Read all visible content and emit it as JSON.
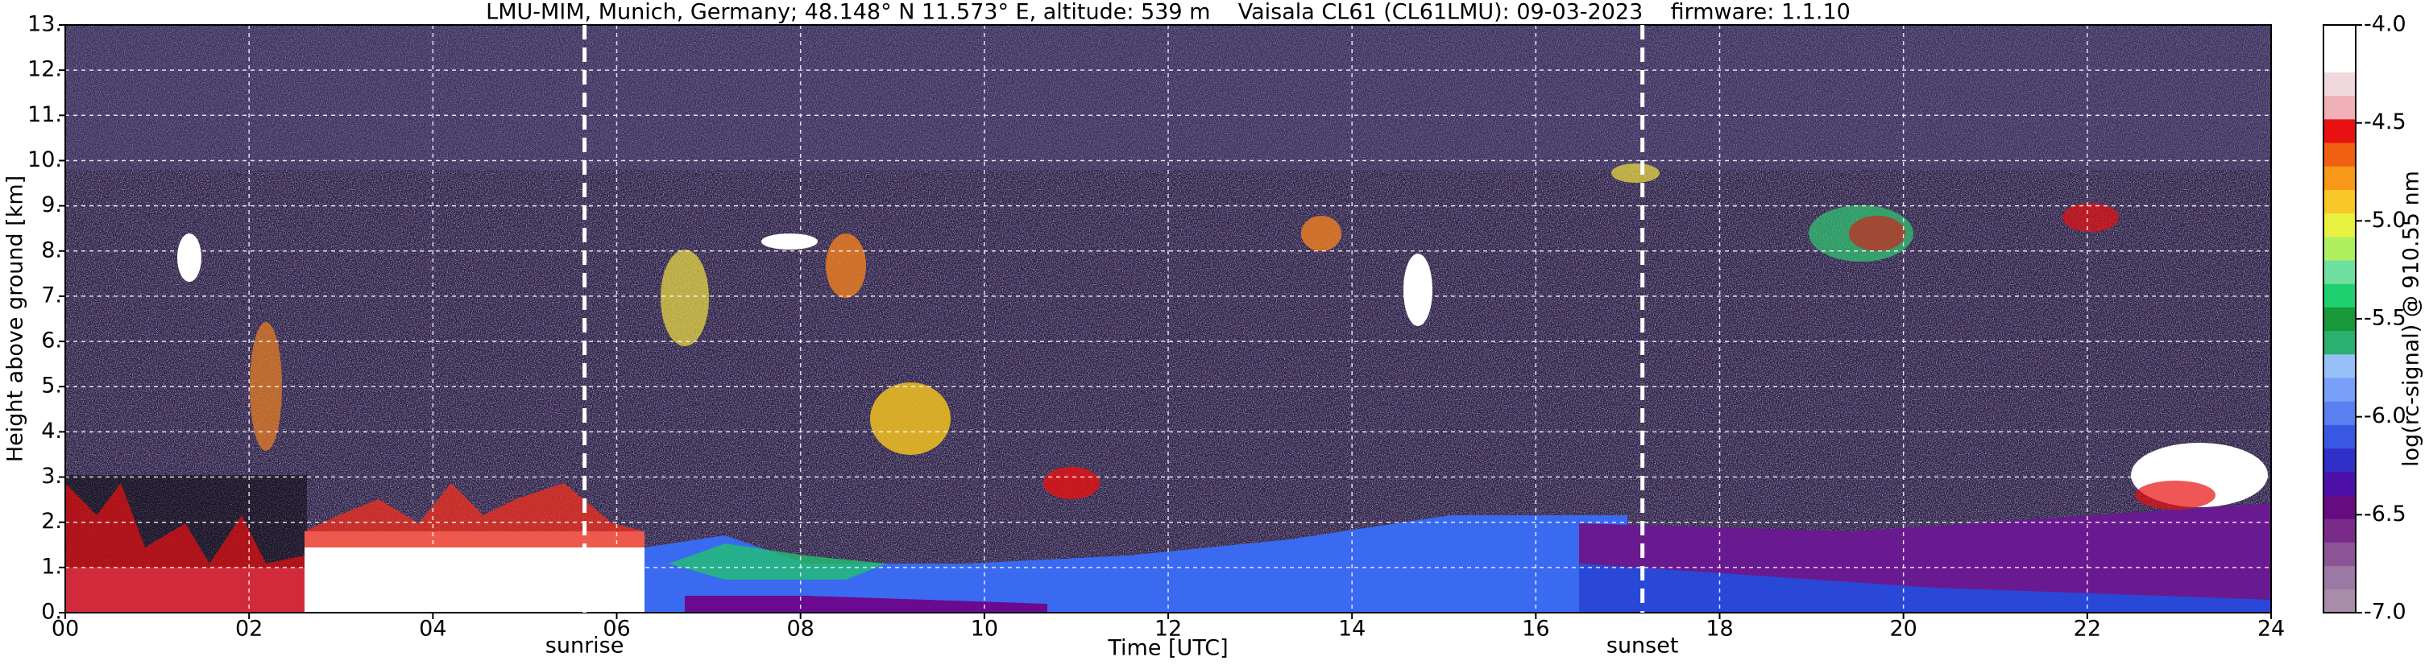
{
  "chart_data": {
    "type": "heatmap",
    "title": "LMU-MIM, Munich, Germany; 48.148° N 11.573° E, altitude: 539 m    Vaisala CL61 (CL61LMU): 09-03-2023    firmware: 1.1.10",
    "xlabel": "Time [UTC]",
    "ylabel": "Height above ground [km]",
    "colorbar_label": "log(rc-signal) @ 910.55 nm",
    "xlim": [
      0,
      24
    ],
    "xticks": [
      {
        "value": 0,
        "label": "00"
      },
      {
        "value": 2,
        "label": "02"
      },
      {
        "value": 4,
        "label": "04"
      },
      {
        "value": 6,
        "label": "06"
      },
      {
        "value": 8,
        "label": "08"
      },
      {
        "value": 10,
        "label": "10"
      },
      {
        "value": 12,
        "label": "12"
      },
      {
        "value": 14,
        "label": "14"
      },
      {
        "value": 16,
        "label": "16"
      },
      {
        "value": 18,
        "label": "18"
      },
      {
        "value": 20,
        "label": "20"
      },
      {
        "value": 22,
        "label": "22"
      },
      {
        "value": 24,
        "label": "24"
      }
    ],
    "ylim": [
      0,
      13
    ],
    "yticks": [
      {
        "value": 0,
        "label": "0."
      },
      {
        "value": 1,
        "label": "1."
      },
      {
        "value": 2,
        "label": "2."
      },
      {
        "value": 3,
        "label": "3."
      },
      {
        "value": 4,
        "label": "4."
      },
      {
        "value": 5,
        "label": "5."
      },
      {
        "value": 6,
        "label": "6."
      },
      {
        "value": 7,
        "label": "7."
      },
      {
        "value": 8,
        "label": "8."
      },
      {
        "value": 9,
        "label": "9."
      },
      {
        "value": 10,
        "label": "10."
      },
      {
        "value": 11,
        "label": "11."
      },
      {
        "value": 12,
        "label": "12."
      },
      {
        "value": 13,
        "label": "13."
      }
    ],
    "grid": true,
    "colorbar_lim": [
      -7,
      -4
    ],
    "colorbar_ticks": [
      {
        "value": -4,
        "label": "-4.0"
      },
      -4.5,
      {
        "value": -5,
        "label": "-5.0"
      },
      -5.5,
      {
        "value": -6,
        "label": "-6.0"
      },
      -6.5,
      {
        "value": -7,
        "label": "-7.0"
      }
    ],
    "colorbar_colors": [
      "#a88ca8",
      "#9c78a4",
      "#8a5496",
      "#7a2a88",
      "#660c80",
      "#4c10a8",
      "#3030c8",
      "#3858e4",
      "#5880f0",
      "#78a0f8",
      "#98c0f8",
      "#2cb070",
      "#189838",
      "#20d070",
      "#70e0a0",
      "#b0f060",
      "#e8f040",
      "#f8c828",
      "#f89818",
      "#f06010",
      "#e81010",
      "#f0b0b8",
      "#f0d8dc",
      "#ffffff",
      "#ffffff"
    ],
    "annotations": [
      {
        "x": 5.65,
        "label": "sunrise"
      },
      {
        "x": 17.16,
        "label": "sunset"
      }
    ]
  }
}
